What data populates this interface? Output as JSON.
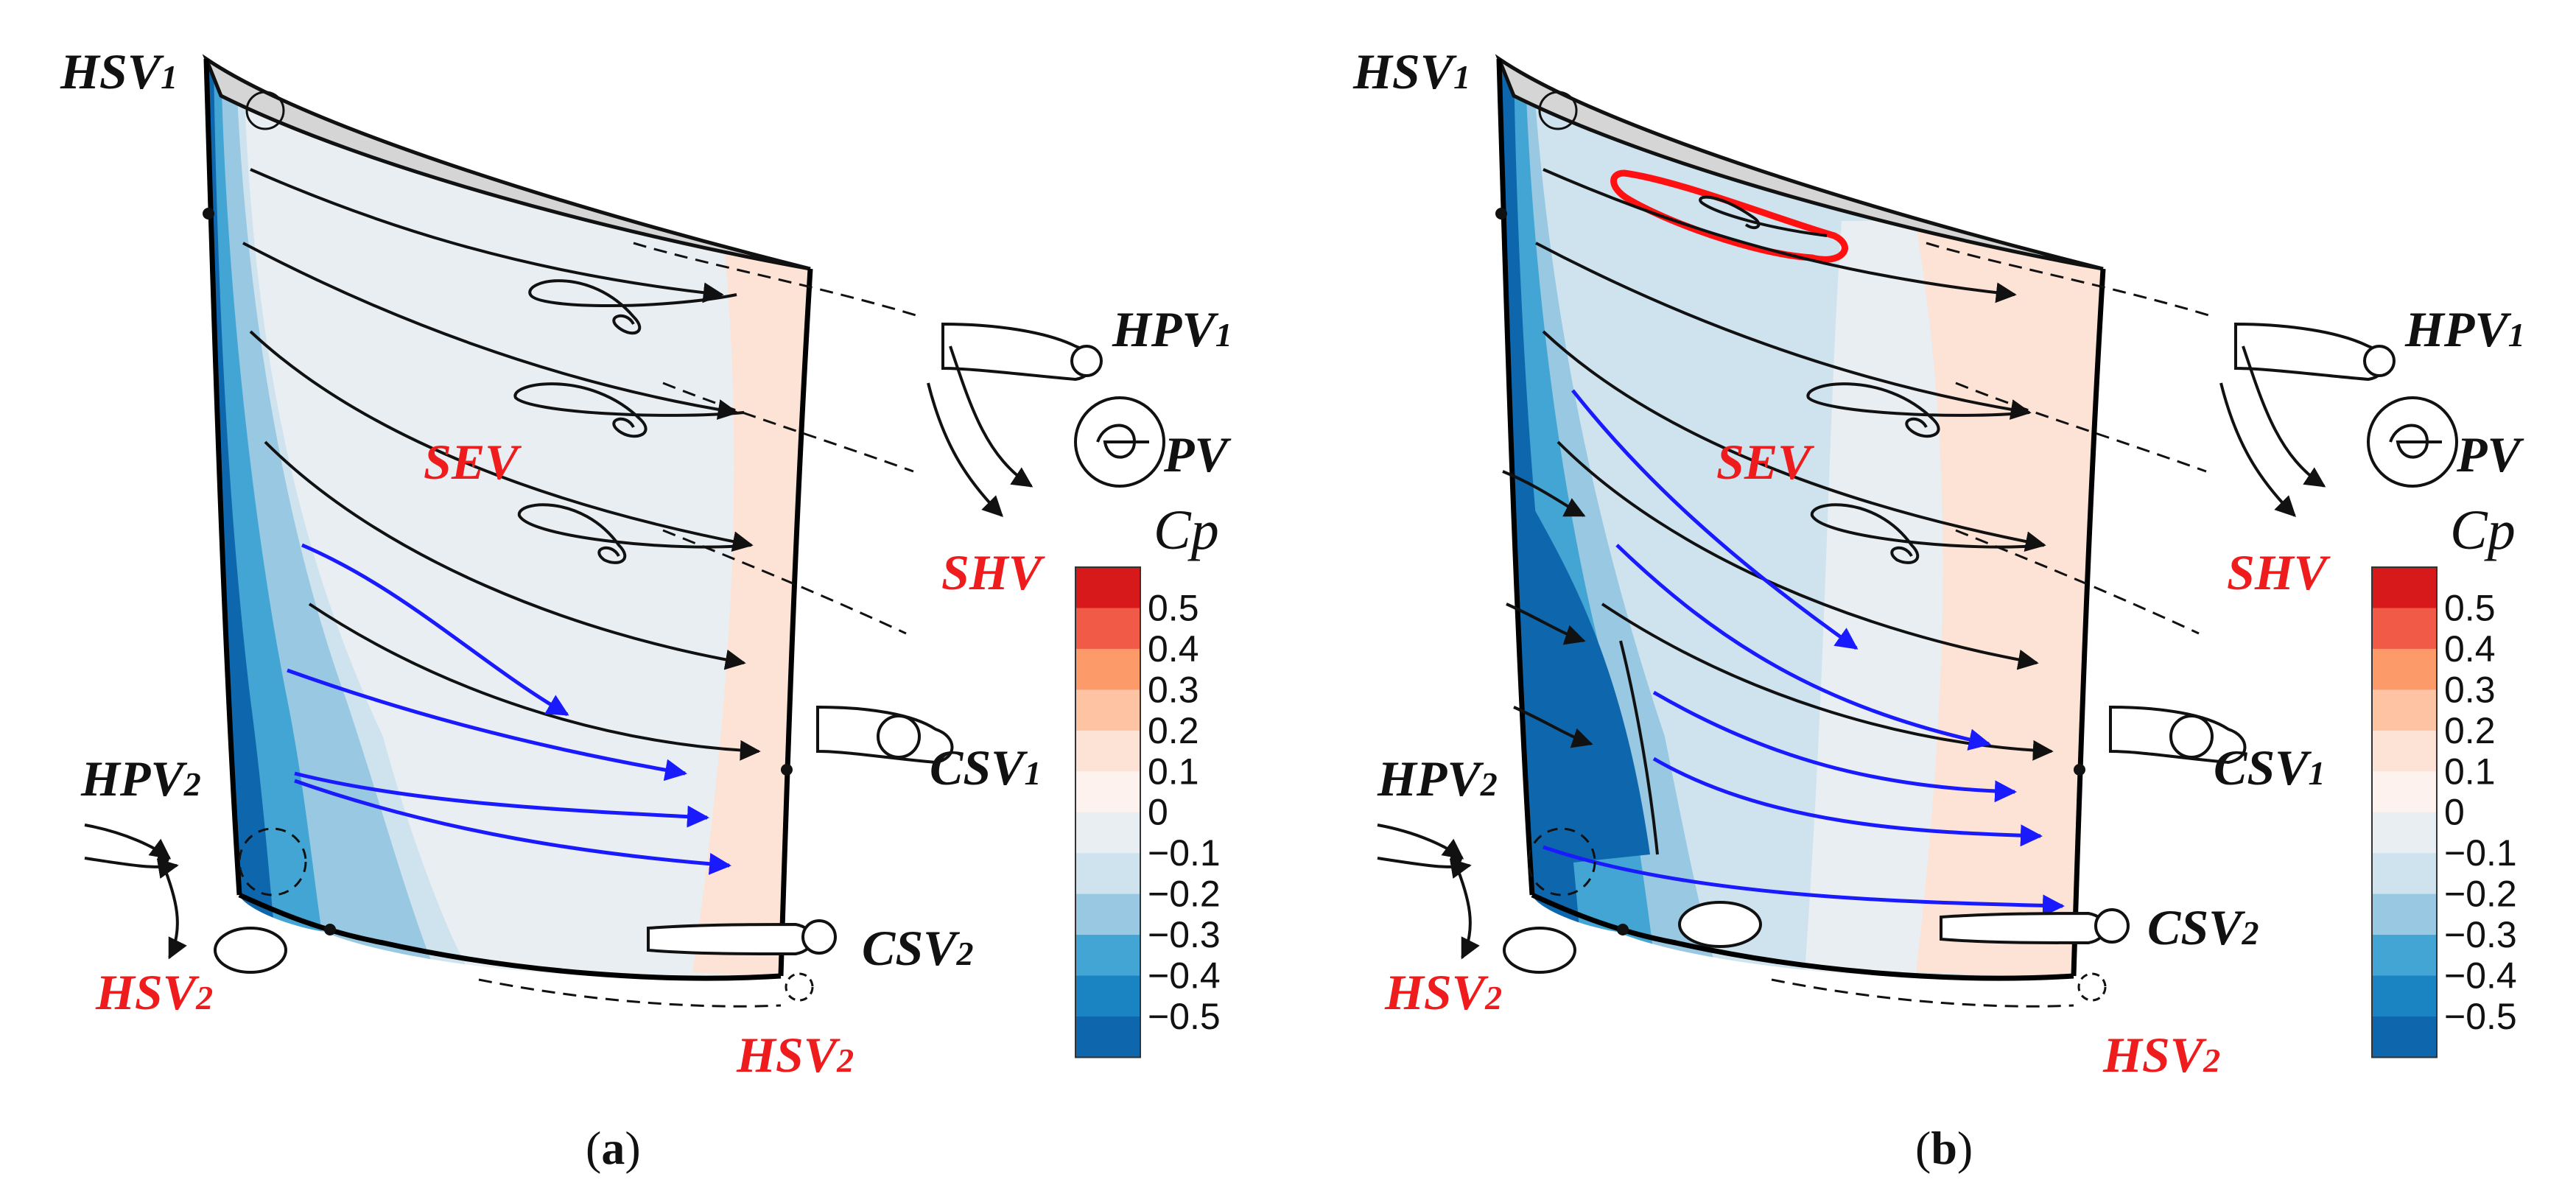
{
  "panels": [
    {
      "caption_open": "(",
      "caption_letter": "a",
      "caption_close": ")",
      "labels": {
        "hsv1": "HSV",
        "hsv1_sub": "1",
        "hpv1": "HPV",
        "hpv1_sub": "1",
        "pv": "PV",
        "sev": "SEV",
        "shv": "SHV",
        "csv1": "CSV",
        "csv1_sub": "1",
        "hpv2": "HPV",
        "hpv2_sub": "2",
        "csv2": "CSV",
        "csv2_sub": "2",
        "hsv2_left": "HSV",
        "hsv2_left_sub": "2",
        "hsv2_right": "HSV",
        "hsv2_right_sub": "2"
      }
    },
    {
      "caption_open": "(",
      "caption_letter": "b",
      "caption_close": ")",
      "labels": {
        "hsv1": "HSV",
        "hsv1_sub": "1",
        "hpv1": "HPV",
        "hpv1_sub": "1",
        "pv": "PV",
        "sev": "SEV",
        "shv": "SHV",
        "csv1": "CSV",
        "csv1_sub": "1",
        "hpv2": "HPV",
        "hpv2_sub": "2",
        "csv2": "CSV",
        "csv2_sub": "2",
        "hsv2_left": "HSV",
        "hsv2_left_sub": "2",
        "hsv2_right": "HSV",
        "hsv2_right_sub": "2"
      }
    }
  ],
  "colorbar": {
    "title": "Cp",
    "ticks": [
      "0.5",
      "0.4",
      "0.3",
      "0.2",
      "0.1",
      "0",
      "−0.1",
      "−0.2",
      "−0.3",
      "−0.4",
      "−0.5"
    ],
    "colors": [
      "#d7191c",
      "#f05a47",
      "#fc9a6a",
      "#fdc3a2",
      "#fde3d6",
      "#fdf2ee",
      "#e8eef2",
      "#cfe3ef",
      "#98c8e2",
      "#43a5d4",
      "#1a84c3",
      "#0e66ad"
    ]
  },
  "colors": {
    "label_red": "#ee1c1c",
    "label_dark": "#111111",
    "streamline_blue": "#1a1aff",
    "highlight_red": "#ff1111"
  }
}
